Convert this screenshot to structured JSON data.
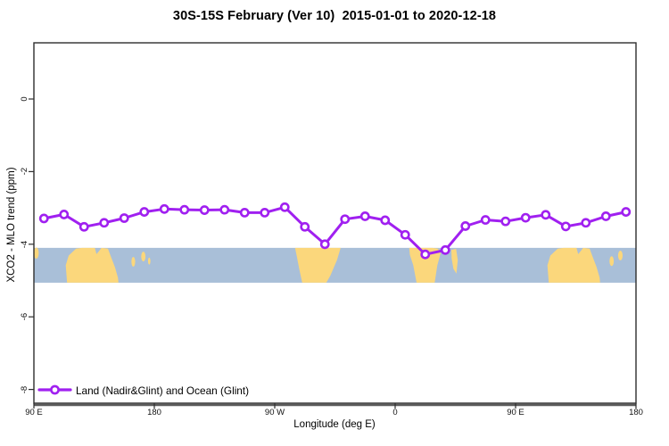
{
  "title": "30S-15S February (Ver 10)  2015-01-01 to 2020-12-18",
  "legend": {
    "label": "Land (Nadir&Glint) and Ocean (Glint)"
  },
  "chart_data": {
    "type": "line",
    "title": "30S-15S February (Ver 10)  2015-01-01 to 2020-12-18",
    "xlabel": "Longitude (deg E)",
    "ylabel": "XCO2 - MLO trend (ppm)",
    "xlim": [
      90,
      540
    ],
    "ylim": [
      -8.4,
      1.55
    ],
    "grid": false,
    "legend_position": "bottom-left-inside",
    "xticks": [
      {
        "value": 90,
        "label": "90 E"
      },
      {
        "value": 180,
        "label": "180"
      },
      {
        "value": 270,
        "label": "90 W"
      },
      {
        "value": 360,
        "label": "0"
      },
      {
        "value": 450,
        "label": "90 E"
      },
      {
        "value": 540,
        "label": "180"
      }
    ],
    "yticks": [
      {
        "value": 0,
        "label": "0"
      },
      {
        "value": -2,
        "label": "-2"
      },
      {
        "value": -4,
        "label": "-4"
      },
      {
        "value": -6,
        "label": "-6"
      },
      {
        "value": -8,
        "label": "-8"
      }
    ],
    "series": [
      {
        "name": "Land (Nadir&Glint) and Ocean (Glint)",
        "color": "#A020F0",
        "marker": "open-circle",
        "x": [
          97.5,
          112.5,
          127.5,
          142.5,
          157.5,
          172.5,
          187.5,
          202.5,
          217.5,
          232.5,
          247.5,
          262.5,
          277.5,
          292.5,
          307.5,
          322.5,
          337.5,
          352.5,
          367.5,
          382.5,
          397.5,
          412.5,
          427.5,
          442.5,
          457.5,
          472.5,
          487.5,
          502.5,
          517.5,
          532.5
        ],
        "y": [
          -3.29,
          -3.18,
          -3.52,
          -3.41,
          -3.28,
          -3.11,
          -3.03,
          -3.05,
          -3.06,
          -3.05,
          -3.13,
          -3.13,
          -2.98,
          -3.52,
          -4.0,
          -3.31,
          -3.23,
          -3.34,
          -3.74,
          -4.28,
          -4.16,
          -3.5,
          -3.33,
          -3.37,
          -3.27,
          -3.19,
          -3.51,
          -3.41,
          -3.23,
          -3.11
        ]
      }
    ],
    "map_band": {
      "description": "world map strip for latitude band 30S-15S drawn inside plot",
      "ocean_color": "#A9BFD8",
      "land_color": "#FBD77C",
      "y_range": [
        -4.1,
        -5.06
      ],
      "land_polygons": [
        {
          "name": "australia",
          "points": [
            [
              114.8,
              1
            ],
            [
              113.8,
              0.5
            ],
            [
              116,
              0.22
            ],
            [
              121.5,
              0.02
            ],
            [
              126,
              0
            ],
            [
              135.5,
              0
            ],
            [
              136.8,
              0.18
            ],
            [
              138.5,
              0.1
            ],
            [
              140.5,
              0
            ],
            [
              145.3,
              0.02
            ],
            [
              147.5,
              0.25
            ],
            [
              150.5,
              0.55
            ],
            [
              152.8,
              0.85
            ],
            [
              153.2,
              1
            ]
          ]
        },
        {
          "name": "south-america",
          "points": [
            [
              285.2,
              0
            ],
            [
              319.3,
              0
            ],
            [
              316.5,
              0.35
            ],
            [
              311.5,
              0.8
            ],
            [
              308.5,
              1
            ],
            [
              290.5,
              1
            ],
            [
              288.3,
              0.6
            ],
            [
              286.5,
              0.25
            ]
          ]
        },
        {
          "name": "africa",
          "points": [
            [
              370.5,
              0
            ],
            [
              388,
              0
            ],
            [
              392,
              0.02
            ],
            [
              394,
              0.15
            ],
            [
              391.5,
              0.5
            ],
            [
              389.5,
              1
            ],
            [
              376,
              1
            ],
            [
              373.5,
              0.5
            ],
            [
              371,
              0.2
            ]
          ]
        },
        {
          "name": "madagascar",
          "points": [
            [
              402,
              0.06
            ],
            [
              405.5,
              0.03
            ],
            [
              406.8,
              0.35
            ],
            [
              405.8,
              0.74
            ],
            [
              403.5,
              0.6
            ],
            [
              402.2,
              0.3
            ]
          ]
        },
        {
          "name": "australia-wrap",
          "points": [
            [
              474.8,
              1
            ],
            [
              473.8,
              0.5
            ],
            [
              476,
              0.22
            ],
            [
              481.5,
              0.02
            ],
            [
              486,
              0
            ],
            [
              495.5,
              0
            ],
            [
              496.8,
              0.18
            ],
            [
              498.5,
              0.1
            ],
            [
              500.5,
              0
            ],
            [
              505.3,
              0.02
            ],
            [
              507.5,
              0.25
            ],
            [
              510.5,
              0.55
            ],
            [
              512.8,
              0.85
            ],
            [
              513.2,
              1
            ]
          ]
        }
      ],
      "islands": [
        [
          91.8,
          0.15,
          1.8,
          0.16
        ],
        [
          164.3,
          0.4,
          1.4,
          0.14
        ],
        [
          171.8,
          0.25,
          1.6,
          0.14
        ],
        [
          176.2,
          0.38,
          0.9,
          0.1
        ],
        [
          521.8,
          0.38,
          1.6,
          0.14
        ],
        [
          528.3,
          0.22,
          1.7,
          0.14
        ]
      ]
    }
  }
}
